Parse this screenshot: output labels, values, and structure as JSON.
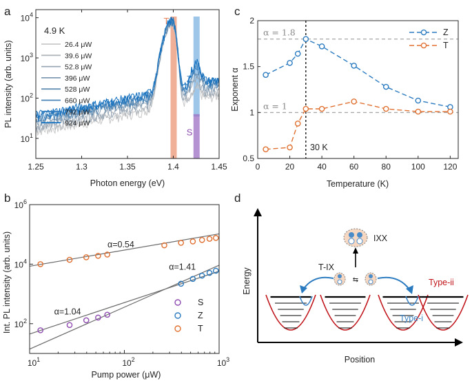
{
  "panels": {
    "a": {
      "letter": "a",
      "temperature": "4.9 K",
      "xlabel": "Photon energy (eV)",
      "ylabel": "PL intensity (arb. units)"
    },
    "b": {
      "letter": "b",
      "xlabel": "Pump power (μW)",
      "ylabel": "Int. PL intensity (arb. units)"
    },
    "c": {
      "letter": "c",
      "xlabel": "Temperature (K)",
      "ylabel": "Exponent α",
      "vline_label": "30 K"
    },
    "d": {
      "letter": "d",
      "xlabel": "Position",
      "ylabel": "Energy",
      "labels": {
        "ixx": "IXX",
        "tix": "T-IX",
        "type_i": "Type-i",
        "type_ii": "Type-ii"
      }
    }
  },
  "chart_data": [
    {
      "type": "line",
      "panel": "a",
      "xlabel": "Photon energy (eV)",
      "ylabel": "PL intensity (arb. units)",
      "xlim": [
        1.25,
        1.45
      ],
      "ylim_log10": [
        0.5,
        4.2
      ],
      "yscale": "log",
      "xticks": [
        "1.25",
        "1.3",
        "1.35",
        "1.4",
        "1.45"
      ],
      "yticks": [
        {
          "exp": "1",
          "value": 10
        },
        {
          "exp": "2",
          "value": 100
        },
        {
          "exp": "3",
          "value": 1000
        },
        {
          "exp": "4",
          "value": 10000
        }
      ],
      "legend_position": "top-left",
      "series": [
        {
          "name": "26.4 μW",
          "color": "#c8c8c8",
          "peak_T": 7500,
          "peak_Z": 60,
          "base": 5
        },
        {
          "name": "39.6 μW",
          "color": "#b0b6bc",
          "peak_T": 7700,
          "peak_Z": 90,
          "base": 6
        },
        {
          "name": "52.8 μW",
          "color": "#98a7b6",
          "peak_T": 7900,
          "peak_Z": 140,
          "base": 7
        },
        {
          "name": "396 μW",
          "color": "#7f9ab3",
          "peak_T": 8000,
          "peak_Z": 220,
          "base": 9
        },
        {
          "name": "528 μW",
          "color": "#6690b4",
          "peak_T": 8100,
          "peak_Z": 300,
          "base": 10
        },
        {
          "name": "660 μW",
          "color": "#4a85b8",
          "peak_T": 8200,
          "peak_Z": 380,
          "base": 11
        },
        {
          "name": "792 μW",
          "color": "#2f7bbd",
          "peak_T": 8300,
          "peak_Z": 460,
          "base": 12
        },
        {
          "name": "924 μW",
          "color": "#1170c0",
          "peak_T": 8400,
          "peak_Z": 540,
          "base": 13
        }
      ],
      "bands": [
        {
          "label": "T",
          "x": 1.4,
          "color": "#e8845f"
        },
        {
          "label": "Z",
          "x": 1.425,
          "color": "#6aa8dc"
        },
        {
          "label": "S",
          "x": 1.425,
          "color": "#9c6fc4"
        }
      ]
    },
    {
      "type": "scatter",
      "panel": "b",
      "xlabel": "Pump power (μW)",
      "ylabel": "Int. PL intensity (arb. units)",
      "xscale": "log",
      "yscale": "log",
      "xlim": [
        10,
        1000
      ],
      "ylim": [
        10,
        1000000
      ],
      "xticks": [
        {
          "exp": "1",
          "value": 10
        },
        {
          "exp": "2",
          "value": 100
        },
        {
          "exp": "3",
          "value": 1000
        }
      ],
      "yticks": [
        {
          "exp": "2",
          "value": 100
        },
        {
          "exp": "4",
          "value": 10000
        },
        {
          "exp": "6",
          "value": 1000000
        }
      ],
      "legend_position": "bottom-right",
      "series": [
        {
          "name": "S",
          "color": "#8e4bb0",
          "x": [
            13,
            26.4,
            39.6,
            52.8,
            66
          ],
          "y": [
            60,
            90,
            130,
            160,
            200
          ],
          "fit_label": "α=1.04",
          "fit": {
            "slope": 1.04,
            "x0": 10,
            "y0": 45,
            "x1": 1000,
            "y1": 5800
          }
        },
        {
          "name": "Z",
          "color": "#2a7ac0",
          "x": [
            396,
            528,
            660,
            792,
            924
          ],
          "y": [
            2200,
            3200,
            4100,
            5100,
            6000
          ],
          "fit_label": "α=1.41",
          "fit": {
            "slope": 1.41,
            "x0": 10,
            "y0": 14,
            "x1": 1000,
            "y1": 9200
          }
        },
        {
          "name": "T",
          "color": "#e07030",
          "x": [
            13,
            26.4,
            39.6,
            52.8,
            66,
            264,
            396,
            528,
            660,
            792,
            924
          ],
          "y": [
            10000,
            14000,
            17000,
            19000,
            21000,
            43000,
            52000,
            58000,
            65000,
            71000,
            76000
          ],
          "fit_label": "α=0.54",
          "fit": {
            "slope": 0.54,
            "x0": 10,
            "y0": 8500,
            "x1": 1000,
            "y1": 104000
          }
        }
      ]
    },
    {
      "type": "line",
      "panel": "c",
      "xlabel": "Temperature (K)",
      "ylabel": "Exponent α",
      "xlim": [
        0,
        125
      ],
      "ylim": [
        0.5,
        2
      ],
      "xticks": [
        "0",
        "20",
        "40",
        "60",
        "80",
        "100",
        "120"
      ],
      "yticks": [
        "0.5",
        "1",
        "1.5",
        "2"
      ],
      "legend_position": "top-right",
      "reference_lines": [
        {
          "label": "α = 1.8",
          "y": 1.8
        },
        {
          "label": "α = 1",
          "y": 1
        }
      ],
      "vline": {
        "x": 30,
        "label": "30 K"
      },
      "series": [
        {
          "name": "Z",
          "color": "#2a7ac0",
          "x": [
            5,
            20,
            25,
            30,
            40,
            60,
            80,
            100,
            120
          ],
          "y": [
            1.41,
            1.54,
            1.64,
            1.8,
            1.72,
            1.51,
            1.28,
            1.13,
            1.06
          ]
        },
        {
          "name": "T",
          "color": "#e07030",
          "x": [
            5,
            20,
            25,
            30,
            40,
            60,
            80,
            100,
            120
          ],
          "y": [
            0.6,
            0.62,
            0.88,
            1.04,
            1.04,
            1.12,
            1.04,
            1.01,
            1.01
          ]
        }
      ]
    }
  ]
}
